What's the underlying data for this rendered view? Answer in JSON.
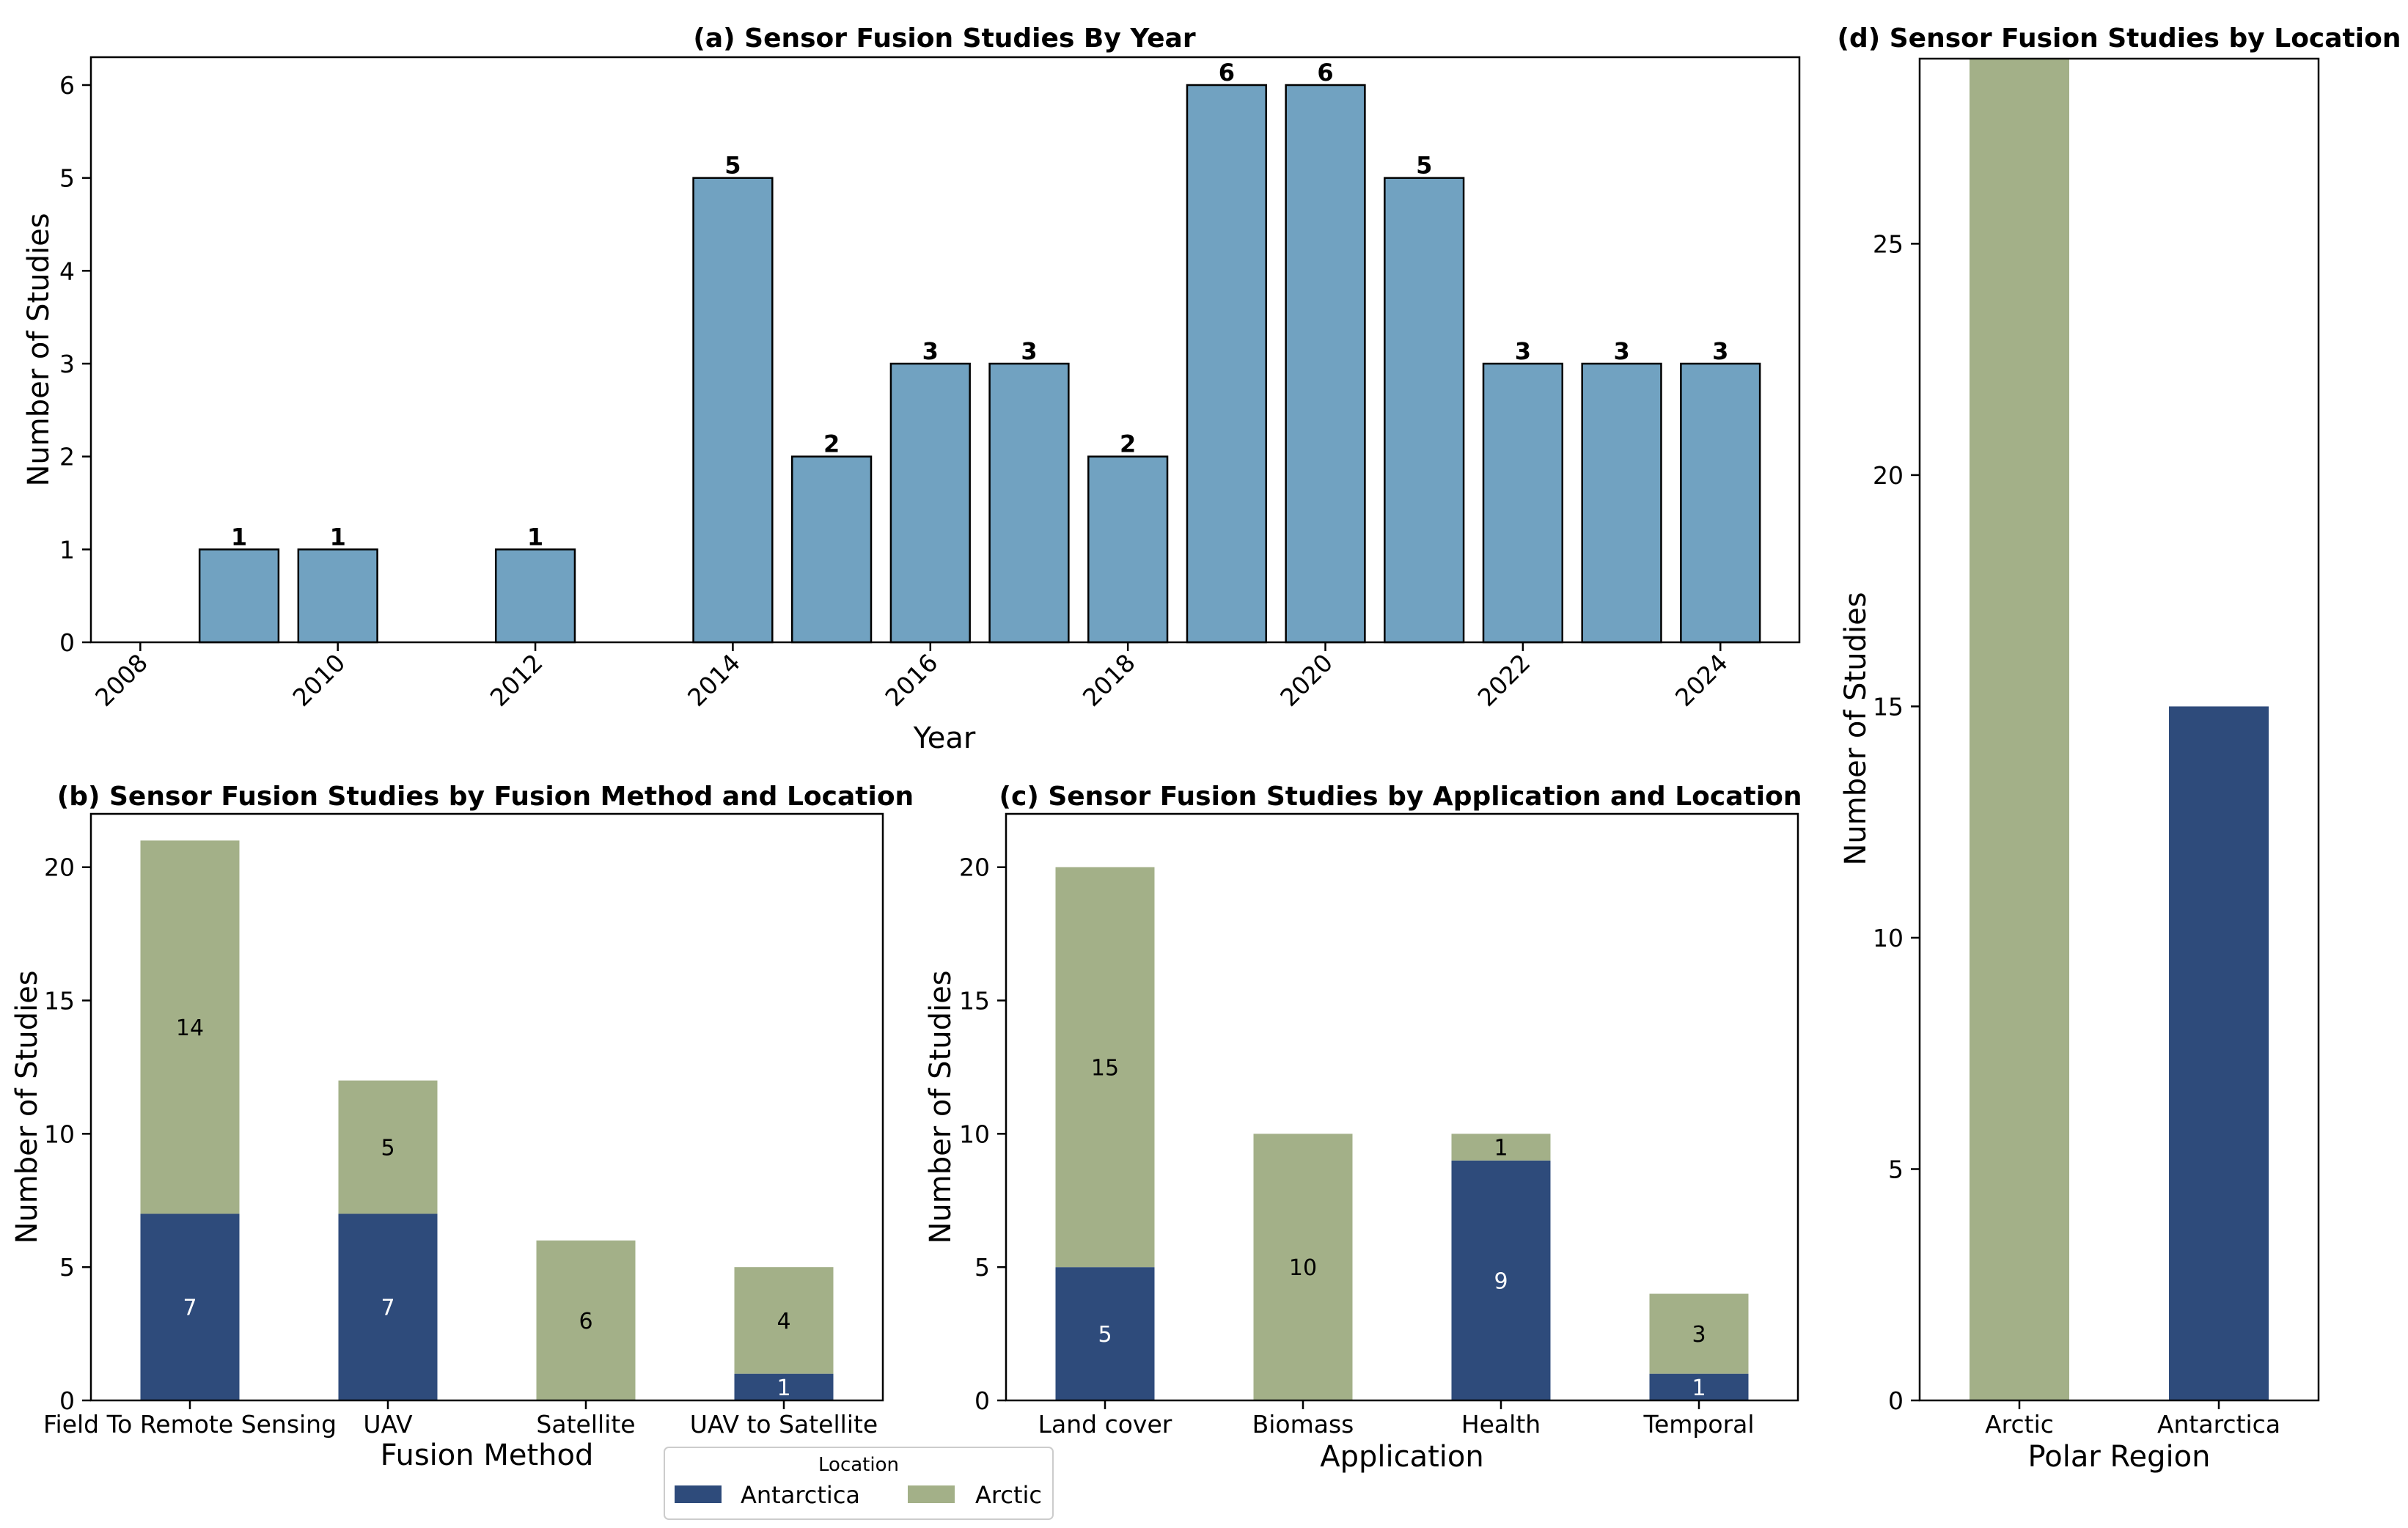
{
  "colors": {
    "year_bar": "#71a2c1",
    "antarctica": "#2e4b7b",
    "arctic": "#a3b088",
    "axis": "#000000"
  },
  "legend": {
    "title": "Location",
    "items": [
      {
        "label": "Antarctica",
        "color": "#2e4b7b"
      },
      {
        "label": "Arctic",
        "color": "#a3b088"
      }
    ]
  },
  "chart_data": [
    {
      "id": "a",
      "type": "bar",
      "title": "(a) Sensor Fusion Studies By Year",
      "xlabel": "Year",
      "ylabel": "Number of Studies",
      "x": [
        2009,
        2010,
        2012,
        2014,
        2015,
        2016,
        2017,
        2018,
        2019,
        2020,
        2021,
        2022,
        2023,
        2024
      ],
      "values": [
        1,
        1,
        1,
        5,
        2,
        3,
        3,
        2,
        6,
        6,
        5,
        3,
        3,
        3
      ],
      "value_labels": [
        "1",
        "1",
        "1",
        "5",
        "2",
        "3",
        "3",
        "2",
        "6",
        "6",
        "5",
        "3",
        "3",
        "3"
      ],
      "xlim": [
        2007.5,
        2024.8
      ],
      "ylim": [
        0,
        6.3
      ],
      "xticks": [
        2008,
        2010,
        2012,
        2014,
        2016,
        2018,
        2020,
        2022,
        2024
      ],
      "xtick_labels": [
        "2008",
        "2010",
        "2012",
        "2014",
        "2016",
        "2018",
        "2020",
        "2022",
        "2024"
      ],
      "yticks": [
        0,
        1,
        2,
        3,
        4,
        5,
        6
      ],
      "ytick_labels": [
        "0",
        "1",
        "2",
        "3",
        "4",
        "5",
        "6"
      ]
    },
    {
      "id": "b",
      "type": "bar",
      "stacked": true,
      "title": "(b) Sensor Fusion Studies by Fusion Method and Location",
      "xlabel": "Fusion Method",
      "ylabel": "Number of Studies",
      "categories": [
        "Field To Remote Sensing",
        "UAV",
        "Satellite",
        "UAV to Satellite"
      ],
      "series": [
        {
          "name": "Antarctica",
          "values": [
            7,
            7,
            0,
            1
          ],
          "labels": [
            "7",
            "7",
            "",
            "1"
          ]
        },
        {
          "name": "Arctic",
          "values": [
            14,
            5,
            6,
            4
          ],
          "labels": [
            "14",
            "5",
            "6",
            "4"
          ]
        }
      ],
      "ylim": [
        0,
        22
      ],
      "yticks": [
        0,
        5,
        10,
        15,
        20
      ],
      "ytick_labels": [
        "0",
        "5",
        "10",
        "15",
        "20"
      ]
    },
    {
      "id": "c",
      "type": "bar",
      "stacked": true,
      "title": "(c) Sensor Fusion Studies by Application and Location",
      "xlabel": "Application",
      "ylabel": "Number of Studies",
      "categories": [
        "Land cover",
        "Biomass",
        "Health",
        "Temporal"
      ],
      "series": [
        {
          "name": "Antarctica",
          "values": [
            5,
            0,
            9,
            1
          ],
          "labels": [
            "5",
            "",
            "9",
            "1"
          ]
        },
        {
          "name": "Arctic",
          "values": [
            15,
            10,
            1,
            3
          ],
          "labels": [
            "15",
            "10",
            "1",
            "3"
          ]
        }
      ],
      "ylim": [
        0,
        22
      ],
      "yticks": [
        0,
        5,
        10,
        15,
        20
      ],
      "ytick_labels": [
        "0",
        "5",
        "10",
        "15",
        "20"
      ]
    },
    {
      "id": "d",
      "type": "bar",
      "title": "(d) Sensor Fusion Studies by Location",
      "xlabel": "Polar Region",
      "ylabel": "Number of Studies",
      "categories": [
        "Arctic",
        "Antarctica"
      ],
      "values": [
        29,
        15
      ],
      "bar_colors": [
        "#a3b088",
        "#2e4b7b"
      ],
      "ylim": [
        0,
        29
      ],
      "yticks": [
        0,
        5,
        10,
        15,
        20,
        25
      ],
      "ytick_labels": [
        "0",
        "5",
        "10",
        "15",
        "20",
        "25"
      ]
    }
  ]
}
